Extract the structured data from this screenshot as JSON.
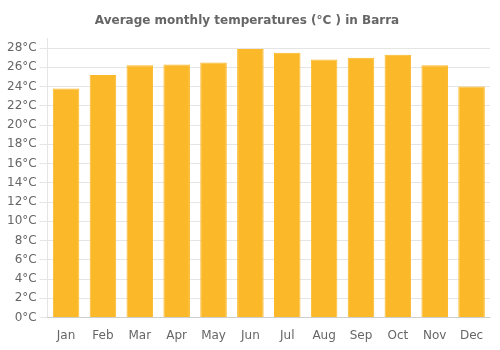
{
  "chart_data": {
    "type": "bar",
    "title": "Average monthly temperatures (°C ) in Barra",
    "categories": [
      "Jan",
      "Feb",
      "Mar",
      "Apr",
      "May",
      "Jun",
      "Jul",
      "Aug",
      "Sep",
      "Oct",
      "Nov",
      "Dec"
    ],
    "values": [
      23.8,
      25.2,
      26.2,
      26.3,
      26.5,
      27.9,
      27.5,
      26.8,
      27.0,
      27.3,
      26.2,
      24.0
    ],
    "color": "#FBB829",
    "ylim": [
      0,
      29
    ],
    "yticks": [
      {
        "value": 0,
        "label": "0°C"
      },
      {
        "value": 2,
        "label": "2°C"
      },
      {
        "value": 4,
        "label": "4°C"
      },
      {
        "value": 6,
        "label": "6°C"
      },
      {
        "value": 8,
        "label": "8°C"
      },
      {
        "value": 10,
        "label": "10°C"
      },
      {
        "value": 12,
        "label": "12°C"
      },
      {
        "value": 14,
        "label": "14°C"
      },
      {
        "value": 16,
        "label": "16°C"
      },
      {
        "value": 18,
        "label": "18°C"
      },
      {
        "value": 20,
        "label": "20°C"
      },
      {
        "value": 22,
        "label": "22°C"
      },
      {
        "value": 24,
        "label": "24°C"
      },
      {
        "value": 26,
        "label": "26°C"
      },
      {
        "value": 28,
        "label": "28°C"
      }
    ],
    "grid": true
  }
}
